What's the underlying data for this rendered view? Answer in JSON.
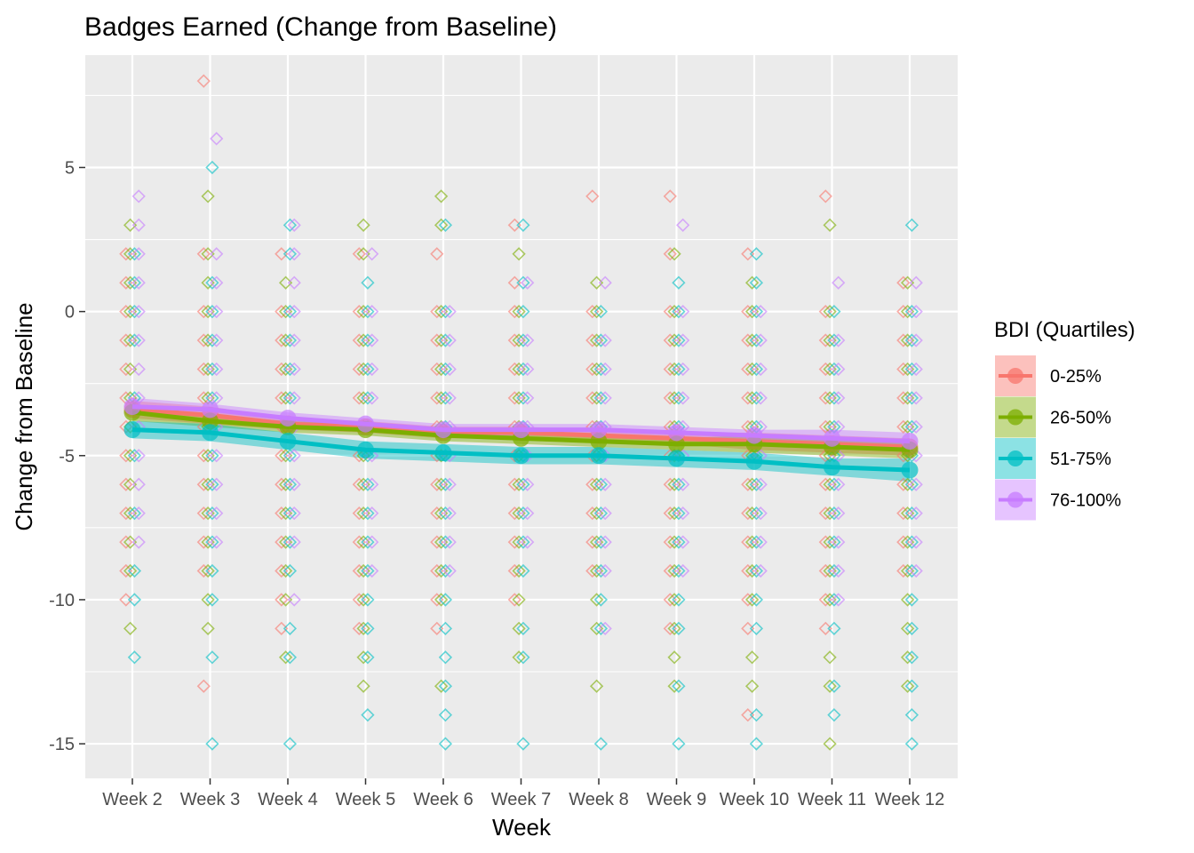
{
  "chart_data": {
    "type": "line",
    "title": "Badges Earned (Change from Baseline)",
    "xlabel": "Week",
    "ylabel": "Change from Baseline",
    "categories": [
      "Week 2",
      "Week 3",
      "Week 4",
      "Week 5",
      "Week 6",
      "Week 7",
      "Week 8",
      "Week 9",
      "Week 10",
      "Week 11",
      "Week 12"
    ],
    "ylim": [
      -16.2,
      8.9
    ],
    "y_ticks": [
      -15,
      -10,
      -5,
      0,
      5
    ],
    "y_tick_labels": [
      "-15",
      "-10",
      "-5",
      "0",
      "5"
    ],
    "grid": true,
    "legend": {
      "title": "BDI (Quartiles)",
      "position": "right"
    },
    "series": [
      {
        "name": "0-25%",
        "color": "#F8766D",
        "values": [
          -3.4,
          -3.6,
          -3.9,
          -4.0,
          -4.2,
          -4.2,
          -4.3,
          -4.4,
          -4.5,
          -4.6,
          -4.7
        ],
        "ci": [
          [
            -3.7,
            -3.1
          ],
          [
            -3.9,
            -3.3
          ],
          [
            -4.1,
            -3.7
          ],
          [
            -4.2,
            -3.8
          ],
          [
            -4.4,
            -4.0
          ],
          [
            -4.4,
            -4.0
          ],
          [
            -4.5,
            -4.1
          ],
          [
            -4.6,
            -4.2
          ],
          [
            -4.8,
            -4.2
          ],
          [
            -4.9,
            -4.3
          ],
          [
            -5.0,
            -4.4
          ]
        ],
        "points": [
          [
            -10,
            -9,
            -8,
            -7,
            -6,
            -5,
            -4,
            -3,
            -2,
            -1,
            0,
            1,
            2
          ],
          [
            -13,
            -9,
            -8,
            -7,
            -6,
            -5,
            -4,
            -3,
            -2,
            -1,
            0,
            2,
            8
          ],
          [
            -11,
            -10,
            -9,
            -8,
            -7,
            -6,
            -5,
            -4,
            -3,
            -2,
            -1,
            0,
            2
          ],
          [
            -11,
            -10,
            -9,
            -8,
            -7,
            -6,
            -5,
            -4,
            -3,
            -2,
            -1,
            0,
            2
          ],
          [
            -11,
            -10,
            -9,
            -8,
            -7,
            -6,
            -5,
            -4,
            -3,
            -2,
            -1,
            0,
            2
          ],
          [
            -10,
            -9,
            -8,
            -7,
            -6,
            -5,
            -4,
            -3,
            -2,
            -1,
            0,
            1,
            3
          ],
          [
            -9,
            -8,
            -7,
            -6,
            -5,
            -4,
            -3,
            -2,
            -1,
            0,
            4
          ],
          [
            -11,
            -10,
            -9,
            -8,
            -7,
            -6,
            -5,
            -4,
            -3,
            -2,
            -1,
            0,
            2,
            4
          ],
          [
            -14,
            -11,
            -10,
            -9,
            -8,
            -7,
            -6,
            -5,
            -4,
            -3,
            -2,
            -1,
            0,
            2
          ],
          [
            -11,
            -10,
            -9,
            -8,
            -7,
            -6,
            -5,
            -4,
            -3,
            -2,
            -1,
            0,
            4
          ],
          [
            -9,
            -8,
            -7,
            -6,
            -5,
            -4,
            -3,
            -2,
            -1,
            0,
            1
          ]
        ]
      },
      {
        "name": "26-50%",
        "color": "#7CAE00",
        "values": [
          -3.5,
          -3.8,
          -4.0,
          -4.1,
          -4.3,
          -4.4,
          -4.5,
          -4.6,
          -4.6,
          -4.7,
          -4.8
        ],
        "ci": [
          [
            -3.8,
            -3.2
          ],
          [
            -4.0,
            -3.6
          ],
          [
            -4.2,
            -3.8
          ],
          [
            -4.3,
            -3.9
          ],
          [
            -4.5,
            -4.1
          ],
          [
            -4.6,
            -4.2
          ],
          [
            -4.7,
            -4.3
          ],
          [
            -4.8,
            -4.4
          ],
          [
            -4.9,
            -4.3
          ],
          [
            -5.0,
            -4.4
          ],
          [
            -5.1,
            -4.5
          ]
        ],
        "points": [
          [
            -11,
            -9,
            -8,
            -7,
            -6,
            -5,
            -4,
            -3,
            -2,
            -1,
            0,
            1,
            2,
            3
          ],
          [
            -11,
            -10,
            -9,
            -8,
            -7,
            -6,
            -5,
            -4,
            -3,
            -2,
            -1,
            0,
            1,
            2,
            4
          ],
          [
            -12,
            -10,
            -9,
            -8,
            -7,
            -6,
            -5,
            -4,
            -3,
            -2,
            -1,
            0,
            1
          ],
          [
            -13,
            -12,
            -11,
            -10,
            -9,
            -8,
            -7,
            -6,
            -5,
            -4,
            -3,
            -2,
            -1,
            0,
            2,
            3
          ],
          [
            -13,
            -10,
            -9,
            -8,
            -7,
            -6,
            -5,
            -4,
            -3,
            -2,
            -1,
            0,
            3,
            4
          ],
          [
            -12,
            -11,
            -10,
            -9,
            -8,
            -7,
            -6,
            -5,
            -4,
            -3,
            -2,
            -1,
            0,
            2
          ],
          [
            -13,
            -11,
            -10,
            -9,
            -8,
            -7,
            -6,
            -5,
            -4,
            -3,
            -2,
            -1,
            0,
            1
          ],
          [
            -13,
            -12,
            -11,
            -10,
            -9,
            -8,
            -7,
            -6,
            -5,
            -4,
            -3,
            -2,
            -1,
            0,
            2
          ],
          [
            -13,
            -12,
            -10,
            -9,
            -8,
            -7,
            -6,
            -5,
            -4,
            -3,
            -2,
            -1,
            0,
            1
          ],
          [
            -15,
            -13,
            -12,
            -10,
            -9,
            -8,
            -7,
            -6,
            -5,
            -4,
            -3,
            -2,
            -1,
            0,
            3
          ],
          [
            -13,
            -12,
            -11,
            -10,
            -9,
            -8,
            -7,
            -6,
            -5,
            -4,
            -3,
            -2,
            -1,
            0,
            1
          ]
        ]
      },
      {
        "name": "51-75%",
        "color": "#00BFC4",
        "values": [
          -4.1,
          -4.2,
          -4.5,
          -4.8,
          -4.9,
          -5.0,
          -5.0,
          -5.1,
          -5.2,
          -5.4,
          -5.5
        ],
        "ci": [
          [
            -4.4,
            -3.8
          ],
          [
            -4.5,
            -3.9
          ],
          [
            -4.8,
            -4.2
          ],
          [
            -5.1,
            -4.5
          ],
          [
            -5.2,
            -4.6
          ],
          [
            -5.3,
            -4.7
          ],
          [
            -5.3,
            -4.7
          ],
          [
            -5.4,
            -4.8
          ],
          [
            -5.5,
            -4.9
          ],
          [
            -5.7,
            -5.1
          ],
          [
            -5.9,
            -5.1
          ]
        ],
        "points": [
          [
            -12,
            -10,
            -9,
            -7,
            -5,
            -3,
            -1,
            0,
            1,
            2
          ],
          [
            -15,
            -12,
            -10,
            -9,
            -8,
            -7,
            -6,
            -5,
            -4,
            -3,
            -2,
            -1,
            0,
            1,
            5
          ],
          [
            -15,
            -12,
            -11,
            -9,
            -8,
            -7,
            -6,
            -5,
            -4,
            -3,
            -2,
            -1,
            0,
            2,
            3
          ],
          [
            -14,
            -12,
            -11,
            -10,
            -9,
            -8,
            -7,
            -6,
            -5,
            -4,
            -3,
            -2,
            -1,
            0,
            1
          ],
          [
            -15,
            -14,
            -13,
            -12,
            -11,
            -10,
            -9,
            -8,
            -7,
            -6,
            -5,
            -4,
            -3,
            -2,
            -1,
            0,
            3
          ],
          [
            -15,
            -12,
            -11,
            -9,
            -8,
            -7,
            -6,
            -5,
            -4,
            -3,
            -2,
            -1,
            0,
            1,
            3
          ],
          [
            -15,
            -11,
            -10,
            -9,
            -8,
            -7,
            -6,
            -5,
            -4,
            -3,
            -2,
            -1,
            0
          ],
          [
            -15,
            -13,
            -11,
            -10,
            -9,
            -8,
            -7,
            -6,
            -5,
            -4,
            -3,
            -2,
            -1,
            0,
            1
          ],
          [
            -15,
            -14,
            -11,
            -10,
            -9,
            -8,
            -7,
            -6,
            -5,
            -4,
            -3,
            -2,
            -1,
            0,
            1,
            2
          ],
          [
            -14,
            -13,
            -11,
            -10,
            -9,
            -8,
            -7,
            -6,
            -5,
            -4,
            -3,
            -2,
            -1,
            0
          ],
          [
            -15,
            -14,
            -13,
            -12,
            -11,
            -10,
            -9,
            -8,
            -7,
            -6,
            -5,
            -4,
            -3,
            -2,
            -1,
            0,
            3
          ]
        ]
      },
      {
        "name": "76-100%",
        "color": "#C77CFF",
        "values": [
          -3.3,
          -3.4,
          -3.7,
          -3.9,
          -4.1,
          -4.1,
          -4.1,
          -4.2,
          -4.3,
          -4.4,
          -4.5
        ],
        "ci": [
          [
            -3.6,
            -3.0
          ],
          [
            -3.6,
            -3.2
          ],
          [
            -3.9,
            -3.5
          ],
          [
            -4.1,
            -3.7
          ],
          [
            -4.3,
            -3.9
          ],
          [
            -4.3,
            -3.9
          ],
          [
            -4.3,
            -3.9
          ],
          [
            -4.4,
            -4.0
          ],
          [
            -4.5,
            -4.1
          ],
          [
            -4.7,
            -4.1
          ],
          [
            -4.8,
            -4.2
          ]
        ],
        "points": [
          [
            -8,
            -7,
            -6,
            -5,
            -4,
            -3,
            -2,
            -1,
            0,
            1,
            2,
            3,
            4
          ],
          [
            -8,
            -7,
            -6,
            -5,
            -4,
            -3,
            -2,
            -1,
            0,
            1,
            2,
            6
          ],
          [
            -10,
            -8,
            -7,
            -6,
            -5,
            -4,
            -3,
            -2,
            -1,
            0,
            1,
            2,
            3
          ],
          [
            -9,
            -8,
            -7,
            -6,
            -5,
            -4,
            -3,
            -2,
            -1,
            0,
            2
          ],
          [
            -9,
            -8,
            -7,
            -6,
            -5,
            -4,
            -3,
            -2,
            -1,
            0
          ],
          [
            -8,
            -7,
            -6,
            -5,
            -4,
            -3,
            -2,
            -1,
            1
          ],
          [
            -11,
            -9,
            -8,
            -7,
            -6,
            -5,
            -4,
            -3,
            -2,
            -1,
            1
          ],
          [
            -9,
            -8,
            -7,
            -6,
            -5,
            -4,
            -3,
            -2,
            -1,
            0,
            3
          ],
          [
            -9,
            -8,
            -7,
            -6,
            -5,
            -4,
            -3,
            -2,
            -1,
            0
          ],
          [
            -10,
            -9,
            -8,
            -7,
            -6,
            -5,
            -4,
            -3,
            -2,
            -1,
            1
          ],
          [
            -9,
            -8,
            -7,
            -6,
            -5,
            -4,
            -3,
            -2,
            -1,
            0,
            1
          ]
        ]
      }
    ]
  }
}
